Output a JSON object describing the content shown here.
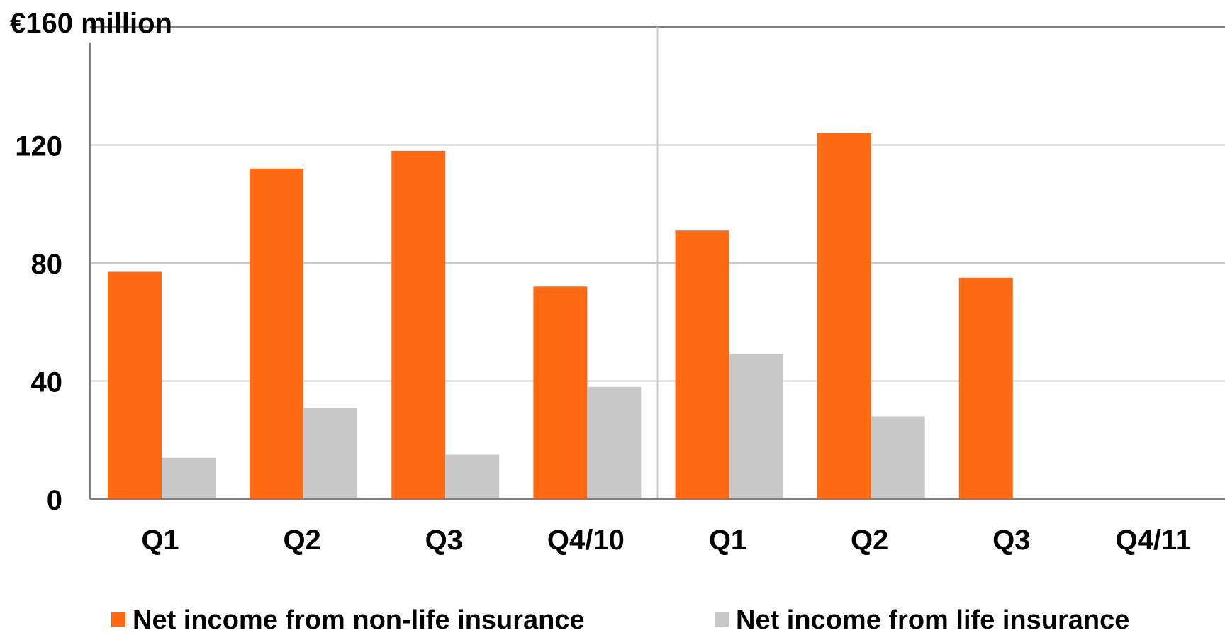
{
  "chart_data": {
    "type": "bar",
    "unit_label": "€160 million",
    "categories": [
      "Q1",
      "Q2",
      "Q3",
      "Q4/10",
      "Q1",
      "Q2",
      "Q3",
      "Q4/11"
    ],
    "series": [
      {
        "name": "Net income from non-life insurance",
        "color": "#ff6a13",
        "values": [
          77,
          112,
          118,
          72,
          91,
          124,
          75,
          null
        ]
      },
      {
        "name": "Net income from life insurance",
        "color": "#c8c8c8",
        "values": [
          14,
          31,
          15,
          38,
          49,
          28,
          null,
          null
        ]
      }
    ],
    "ylim": [
      0,
      160
    ],
    "yticks": [
      0,
      40,
      80,
      120
    ],
    "grid": true,
    "legend_position": "bottom"
  }
}
